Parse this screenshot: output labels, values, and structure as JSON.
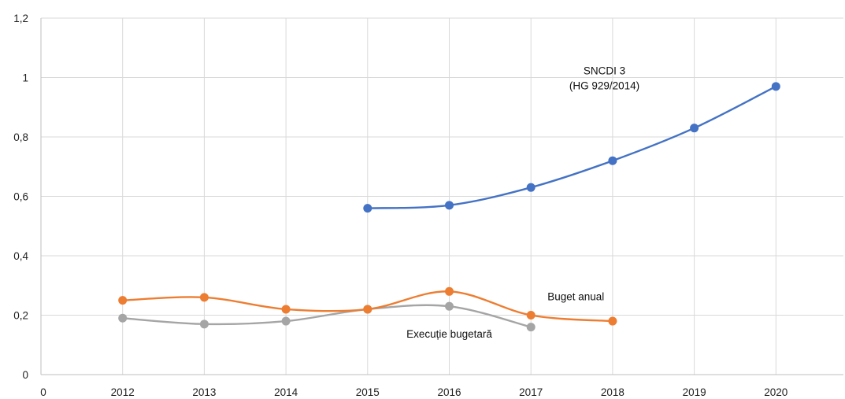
{
  "chart_data": {
    "type": "line",
    "title": "",
    "xlabel": "",
    "ylabel": "",
    "x_ticks": [
      "0",
      "2012",
      "2013",
      "2014",
      "2015",
      "2016",
      "2017",
      "2018",
      "2019",
      "2020"
    ],
    "y_ticks": [
      "0",
      "0,2",
      "0,4",
      "0,6",
      "0,8",
      "1",
      "1,2"
    ],
    "ylim": [
      0,
      1.2
    ],
    "grid": true,
    "legend": "none",
    "smooth": true,
    "series": [
      {
        "key": "sncdi",
        "color": "#4472c4",
        "x": [
          2015,
          2016,
          2017,
          2018,
          2019,
          2020
        ],
        "values": [
          0.56,
          0.57,
          0.63,
          0.72,
          0.83,
          0.97
        ]
      },
      {
        "key": "buget",
        "color": "#ed7d31",
        "x": [
          2012,
          2013,
          2014,
          2015,
          2016,
          2017,
          2018
        ],
        "values": [
          0.25,
          0.26,
          0.22,
          0.22,
          0.28,
          0.2,
          0.18
        ]
      },
      {
        "key": "executie",
        "color": "#a5a5a5",
        "x": [
          2012,
          2013,
          2014,
          2015,
          2016,
          2017
        ],
        "values": [
          0.19,
          0.17,
          0.18,
          0.22,
          0.23,
          0.16
        ]
      }
    ],
    "annotations": [
      {
        "key": "sncdi",
        "lines": [
          "SNCDI 3",
          "(HG 929/2014)"
        ],
        "anchor": [
          2017.9,
          1.01
        ]
      },
      {
        "key": "buget",
        "lines": [
          "Buget anual"
        ],
        "anchor": [
          2017.55,
          0.25
        ]
      },
      {
        "key": "executie",
        "lines": [
          "Execuție bugetară"
        ],
        "anchor": [
          2016.0,
          0.125
        ]
      }
    ]
  }
}
